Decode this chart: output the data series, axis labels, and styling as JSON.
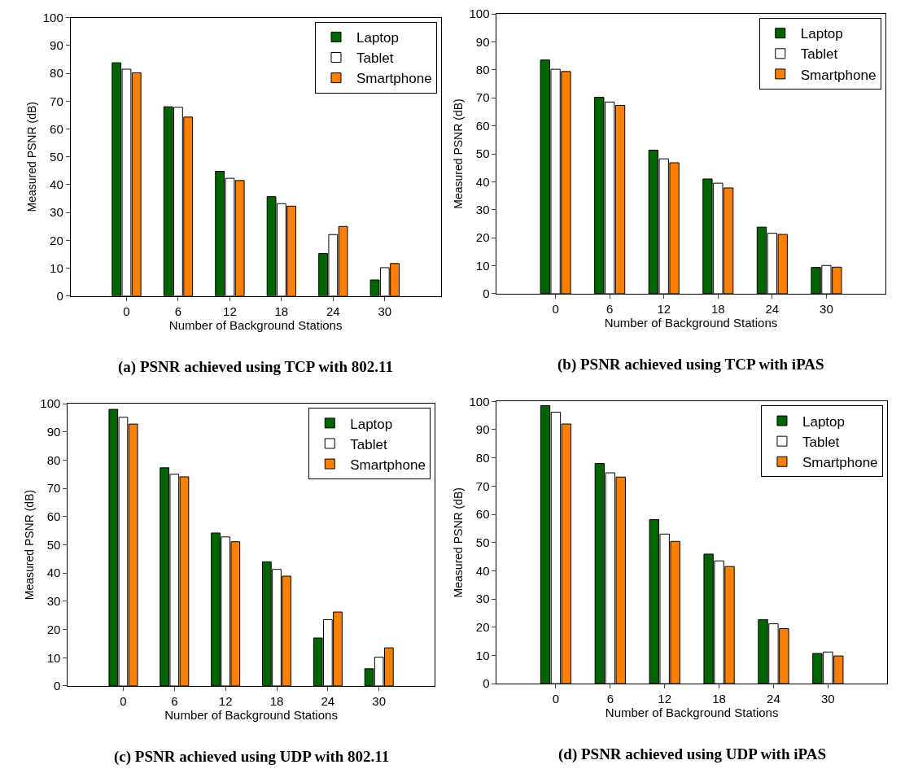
{
  "chart_data": [
    {
      "type": "bar",
      "title": "(a) PSNR achieved using TCP with 802.11",
      "xlabel": "Number of Background Stations",
      "ylabel": "Measured PSNR (dB)",
      "x": [
        0,
        6,
        12,
        18,
        24,
        30
      ],
      "xlim": [
        -6.5,
        36.5
      ],
      "xticks": [
        0,
        6,
        12,
        18,
        24,
        30
      ],
      "ylim": [
        0,
        100
      ],
      "yticks": [
        0,
        10,
        20,
        30,
        40,
        50,
        60,
        70,
        80,
        90,
        100
      ],
      "legend": "top right",
      "series": [
        {
          "name": "Laptop",
          "color": "#006400",
          "values": [
            83.8,
            68.0,
            44.8,
            35.7,
            15.3,
            5.8
          ]
        },
        {
          "name": "Tablet",
          "color": "#ffffff",
          "values": [
            81.5,
            67.8,
            42.3,
            33.2,
            22.1,
            10.2
          ]
        },
        {
          "name": "Smartphone",
          "color": "#ff8000",
          "values": [
            80.2,
            64.3,
            41.5,
            32.3,
            25.0,
            11.7
          ]
        }
      ]
    },
    {
      "type": "bar",
      "title": "(b) PSNR achieved using TCP with iPAS",
      "xlabel": "Number of Background Stations",
      "ylabel": "Measured PSNR (dB)",
      "x": [
        0,
        6,
        12,
        18,
        24,
        30
      ],
      "xlim": [
        -6.5,
        36.5
      ],
      "xticks": [
        0,
        6,
        12,
        18,
        24,
        30
      ],
      "ylim": [
        0,
        100
      ],
      "yticks": [
        0,
        10,
        20,
        30,
        40,
        50,
        60,
        70,
        80,
        90,
        100
      ],
      "legend": "top right",
      "series": [
        {
          "name": "Laptop",
          "color": "#006400",
          "values": [
            83.5,
            70.2,
            51.3,
            41.0,
            23.8,
            9.4
          ]
        },
        {
          "name": "Tablet",
          "color": "#ffffff",
          "values": [
            80.2,
            68.5,
            48.2,
            39.5,
            21.6,
            10.1
          ]
        },
        {
          "name": "Smartphone",
          "color": "#ff8000",
          "values": [
            79.4,
            67.3,
            46.8,
            37.8,
            21.2,
            9.5
          ]
        }
      ]
    },
    {
      "type": "bar",
      "title": "(c) PSNR achieved using UDP with 802.11",
      "xlabel": "Number of Background Stations",
      "ylabel": "Measured PSNR (dB)",
      "x": [
        0,
        6,
        12,
        18,
        24,
        30
      ],
      "xlim": [
        -6.5,
        36.5
      ],
      "xticks": [
        0,
        6,
        12,
        18,
        24,
        30
      ],
      "ylim": [
        0,
        100
      ],
      "yticks": [
        0,
        10,
        20,
        30,
        40,
        50,
        60,
        70,
        80,
        90,
        100
      ],
      "legend": "top right",
      "series": [
        {
          "name": "Laptop",
          "color": "#006400",
          "values": [
            98.0,
            77.3,
            54.2,
            44.0,
            17.0,
            6.1
          ]
        },
        {
          "name": "Tablet",
          "color": "#ffffff",
          "values": [
            95.2,
            75.0,
            52.8,
            41.3,
            23.5,
            10.2
          ]
        },
        {
          "name": "Smartphone",
          "color": "#ff8000",
          "values": [
            92.8,
            74.1,
            51.1,
            38.9,
            26.2,
            13.5
          ]
        }
      ]
    },
    {
      "type": "bar",
      "title": "(d) PSNR achieved using UDP with iPAS",
      "xlabel": "Number of Background Stations",
      "ylabel": "Measured PSNR (dB)",
      "x": [
        0,
        6,
        12,
        18,
        24,
        30
      ],
      "xlim": [
        -6.5,
        36.5
      ],
      "xticks": [
        0,
        6,
        12,
        18,
        24,
        30
      ],
      "ylim": [
        0,
        100
      ],
      "yticks": [
        0,
        10,
        20,
        30,
        40,
        50,
        60,
        70,
        80,
        90,
        100
      ],
      "legend": "top right",
      "series": [
        {
          "name": "Laptop",
          "color": "#006400",
          "values": [
            98.5,
            78.0,
            58.1,
            45.9,
            22.7,
            10.7
          ]
        },
        {
          "name": "Tablet",
          "color": "#ffffff",
          "values": [
            96.2,
            74.7,
            53.0,
            43.5,
            21.2,
            11.2
          ]
        },
        {
          "name": "Smartphone",
          "color": "#ff8000",
          "values": [
            92.0,
            73.2,
            50.4,
            41.5,
            19.5,
            9.8
          ]
        }
      ]
    }
  ]
}
